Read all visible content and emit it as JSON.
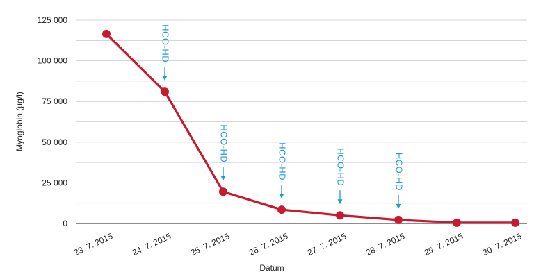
{
  "chart_data": {
    "type": "line",
    "title": "",
    "xlabel": "Datum",
    "ylabel": "Myoglobin (µg/l)",
    "ylim": [
      0,
      125000
    ],
    "yticks": [
      0,
      25000,
      50000,
      75000,
      100000,
      125000
    ],
    "ytick_labels": [
      "0",
      "25 000",
      "50 000",
      "75 000",
      "100 000",
      "125 000"
    ],
    "grid": true,
    "categories": [
      "23. 7. 2015",
      "24. 7. 2015",
      "25. 7. 2015",
      "26. 7. 2015",
      "27. 7. 2015",
      "28. 7. 2015",
      "29. 7. 2015",
      "30. 7. 2015"
    ],
    "series": [
      {
        "values": [
          116500,
          81000,
          19500,
          8500,
          5000,
          2200,
          500,
          500
        ],
        "color": "#c8192e"
      }
    ],
    "annotations": [
      {
        "text": "HCO-HD",
        "category_index": 1,
        "color": "#1a9bd7"
      },
      {
        "text": "HCO-HD",
        "category_index": 2,
        "color": "#1a9bd7"
      },
      {
        "text": "HCO-HD",
        "category_index": 3,
        "color": "#1a9bd7"
      },
      {
        "text": "HCO-HD",
        "category_index": 4,
        "color": "#1a9bd7"
      },
      {
        "text": "HCO-HD",
        "category_index": 5,
        "color": "#1a9bd7"
      }
    ],
    "colors": {
      "grid": "#c8c8c8",
      "axis": "#666666"
    }
  }
}
